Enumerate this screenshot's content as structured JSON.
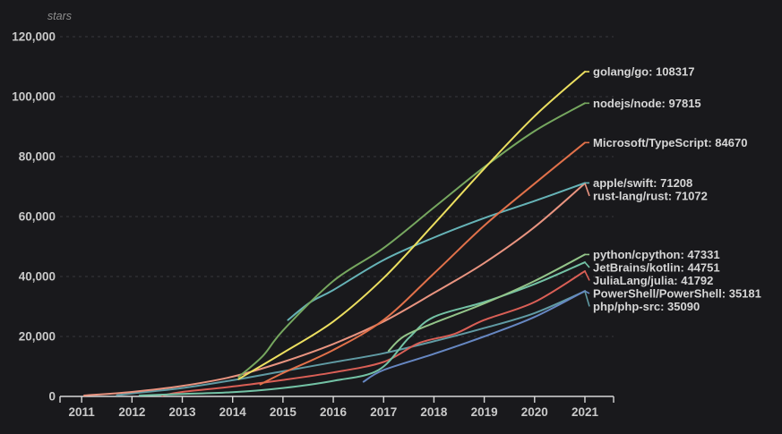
{
  "app": {
    "background": "#19191c"
  },
  "chart_data": {
    "type": "line",
    "unit_label": "stars",
    "xlabel": "",
    "ylabel": "stars",
    "xlim": [
      2010.57,
      2021.57
    ],
    "ylim": [
      0,
      120000
    ],
    "grid": {
      "horizontal": true,
      "style": "dashed",
      "color": "#36363b"
    },
    "axis_color": "#d8d8d8",
    "tick_label_color": "#c9c9c9",
    "series_label_color": "#d6d6d6",
    "unit_label_color": "#8d8d8d",
    "x_ticks": [
      {
        "value": 2011,
        "label": "2011"
      },
      {
        "value": 2012,
        "label": "2012"
      },
      {
        "value": 2013,
        "label": "2013"
      },
      {
        "value": 2014,
        "label": "2014"
      },
      {
        "value": 2015,
        "label": "2015"
      },
      {
        "value": 2016,
        "label": "2016"
      },
      {
        "value": 2017,
        "label": "2017"
      },
      {
        "value": 2018,
        "label": "2018"
      },
      {
        "value": 2019,
        "label": "2019"
      },
      {
        "value": 2020,
        "label": "2020"
      },
      {
        "value": 2021,
        "label": "2021"
      }
    ],
    "y_ticks": [
      {
        "value": 0,
        "label": "0"
      },
      {
        "value": 20000,
        "label": "20,000"
      },
      {
        "value": 40000,
        "label": "40,000"
      },
      {
        "value": 60000,
        "label": "60,000"
      },
      {
        "value": 80000,
        "label": "80,000"
      },
      {
        "value": 100000,
        "label": "100,000"
      },
      {
        "value": 120000,
        "label": "120,000"
      }
    ],
    "legend_position": "right-edge-labels",
    "series": [
      {
        "name": "golang/go",
        "final_value": 108317,
        "label": "golang/go: 108317",
        "color": "#ecdf60",
        "points": [
          [
            2014.12,
            5800
          ],
          [
            2015,
            14500
          ],
          [
            2016,
            25000
          ],
          [
            2017,
            39500
          ],
          [
            2018,
            57500
          ],
          [
            2019,
            76000
          ],
          [
            2020,
            93500
          ],
          [
            2021,
            108317
          ]
        ]
      },
      {
        "name": "nodejs/node",
        "final_value": 97815,
        "label": "nodejs/node: 97815",
        "color": "#76a75f",
        "points": [
          [
            2014.12,
            6500
          ],
          [
            2014.6,
            13500
          ],
          [
            2015,
            22000
          ],
          [
            2016,
            38500
          ],
          [
            2017,
            49500
          ],
          [
            2018,
            63000
          ],
          [
            2019,
            76500
          ],
          [
            2020,
            88500
          ],
          [
            2021,
            97815
          ]
        ]
      },
      {
        "name": "Microsoft/TypeScript",
        "final_value": 84670,
        "label": "Microsoft/TypeScript: 84670",
        "color": "#e1714a",
        "points": [
          [
            2014.55,
            4000
          ],
          [
            2015,
            7800
          ],
          [
            2016,
            15500
          ],
          [
            2017,
            25500
          ],
          [
            2018,
            41000
          ],
          [
            2019,
            57000
          ],
          [
            2020,
            71000
          ],
          [
            2021,
            84670
          ]
        ]
      },
      {
        "name": "apple/swift",
        "final_value": 71208,
        "label": "apple/swift: 71208",
        "color": "#66b3b7",
        "points": [
          [
            2015.1,
            25500
          ],
          [
            2015.55,
            31500
          ],
          [
            2016,
            35500
          ],
          [
            2017,
            45500
          ],
          [
            2018,
            53000
          ],
          [
            2019,
            59500
          ],
          [
            2020,
            65200
          ],
          [
            2021,
            71208
          ]
        ]
      },
      {
        "name": "rust-lang/rust",
        "final_value": 71072,
        "label": "rust-lang/rust: 71072",
        "color": "#e99480",
        "points": [
          [
            2011.05,
            300
          ],
          [
            2012,
            1500
          ],
          [
            2013,
            3500
          ],
          [
            2014,
            6600
          ],
          [
            2015,
            11500
          ],
          [
            2016,
            17500
          ],
          [
            2017,
            25000
          ],
          [
            2018,
            34500
          ],
          [
            2019,
            44500
          ],
          [
            2020,
            56500
          ],
          [
            2021,
            71072
          ]
        ]
      },
      {
        "name": "python/cpython",
        "final_value": 47331,
        "label": "python/cpython: 47331",
        "color": "#93c489",
        "points": [
          [
            2017.1,
            15200
          ],
          [
            2017.4,
            20000
          ],
          [
            2018,
            24500
          ],
          [
            2019,
            31000
          ],
          [
            2020,
            38500
          ],
          [
            2021,
            47331
          ]
        ]
      },
      {
        "name": "JetBrains/kotlin",
        "final_value": 44751,
        "label": "JetBrains/kotlin: 44751",
        "color": "#73c2a5",
        "points": [
          [
            2012.15,
            300
          ],
          [
            2013,
            800
          ],
          [
            2014,
            1400
          ],
          [
            2015,
            2800
          ],
          [
            2016,
            5200
          ],
          [
            2016.9,
            8800
          ],
          [
            2017.5,
            19500
          ],
          [
            2018,
            26500
          ],
          [
            2019,
            31500
          ],
          [
            2020,
            37500
          ],
          [
            2021,
            44751
          ]
        ]
      },
      {
        "name": "JuliaLang/julia",
        "final_value": 41792,
        "label": "JuliaLang/julia: 41792",
        "color": "#da5f56",
        "points": [
          [
            2012.6,
            300
          ],
          [
            2013,
            1500
          ],
          [
            2014,
            3300
          ],
          [
            2015,
            5500
          ],
          [
            2016,
            8000
          ],
          [
            2017,
            11500
          ],
          [
            2017.7,
            17800
          ],
          [
            2018.4,
            20800
          ],
          [
            2019,
            25500
          ],
          [
            2020,
            31500
          ],
          [
            2021,
            41792
          ]
        ]
      },
      {
        "name": "PowerShell/PowerShell",
        "final_value": 35181,
        "label": "PowerShell/PowerShell: 35181",
        "color": "#6687c2",
        "points": [
          [
            2016.6,
            4900
          ],
          [
            2017,
            8800
          ],
          [
            2018,
            14200
          ],
          [
            2019,
            20000
          ],
          [
            2020,
            26500
          ],
          [
            2021,
            35181
          ]
        ]
      },
      {
        "name": "php/php-src",
        "final_value": 35090,
        "label": "php/php-src: 35090",
        "color": "#609ba4",
        "points": [
          [
            2011.7,
            400
          ],
          [
            2012,
            1000
          ],
          [
            2013,
            2800
          ],
          [
            2014,
            5400
          ],
          [
            2015,
            8400
          ],
          [
            2016,
            11400
          ],
          [
            2017,
            14400
          ],
          [
            2018,
            18400
          ],
          [
            2019,
            22800
          ],
          [
            2020,
            27800
          ],
          [
            2021,
            35090
          ]
        ]
      }
    ]
  }
}
